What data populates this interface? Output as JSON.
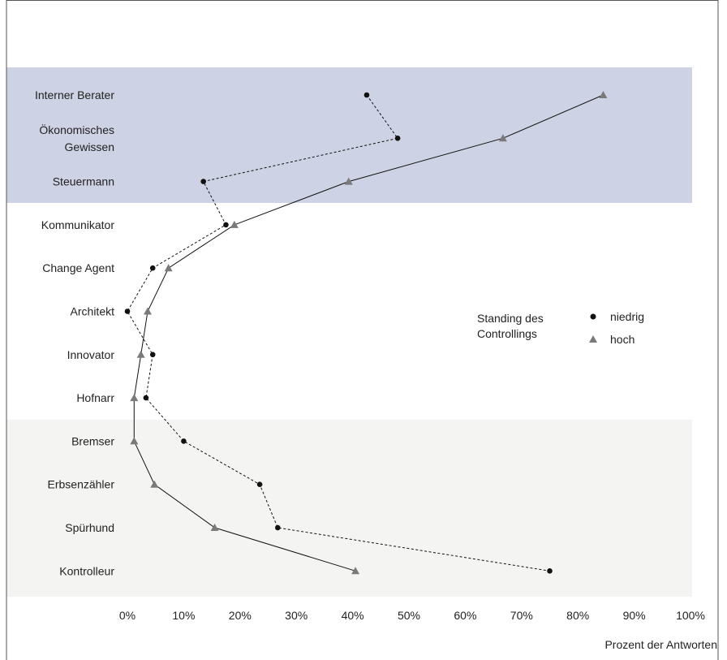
{
  "chart_data": {
    "type": "line",
    "orientation": "horizontal",
    "categories": [
      "Interner Berater",
      "Ökonomisches Gewissen",
      "Steuermann",
      "Kommunikator",
      "Change Agent",
      "Architekt",
      "Innovator",
      "Hofnarr",
      "Bremser",
      "Erbsenzähler",
      "Spürhund",
      "Kontrolleur"
    ],
    "category_lines": [
      [
        "Interner Berater"
      ],
      [
        "Ökonomisches",
        "Gewissen"
      ],
      [
        "Steuermann"
      ],
      [
        "Kommunikator"
      ],
      [
        "Change Agent"
      ],
      [
        "Architekt"
      ],
      [
        "Innovator"
      ],
      [
        "Hofnarr"
      ],
      [
        "Bremser"
      ],
      [
        "Erbsenzähler"
      ],
      [
        "Spürhund"
      ],
      [
        "Kontrolleur"
      ]
    ],
    "series": [
      {
        "name": "niedrig",
        "marker": "circle",
        "line_style": "dashed",
        "color": "#111111",
        "values": [
          42.5,
          48,
          13.5,
          17.5,
          4.5,
          0,
          4.5,
          3.3,
          10,
          23.5,
          26.7,
          75
        ]
      },
      {
        "name": "hoch",
        "marker": "triangle",
        "line_style": "solid",
        "color": "#7a7a7a",
        "values": [
          84.5,
          66.7,
          39.3,
          19,
          7.3,
          3.6,
          2.4,
          1.2,
          1.2,
          4.8,
          15.5,
          40.5
        ]
      }
    ],
    "xlim": [
      0,
      100
    ],
    "x_ticks": [
      "0%",
      "10%",
      "20%",
      "30%",
      "40%",
      "50%",
      "60%",
      "70%",
      "80%",
      "90%",
      "100%"
    ],
    "xlabel": "Prozent der Antworten",
    "ylabel": "",
    "legend": {
      "title_lines": [
        "Standing des",
        "Controllings"
      ],
      "placement": "right-middle"
    },
    "bands": [
      {
        "from": "Interner Berater",
        "to": "Steuermann",
        "color": "#cdd2e4"
      },
      {
        "from": "Bremser",
        "to": "Kontrolleur",
        "color": "#f4f4f2"
      }
    ]
  }
}
